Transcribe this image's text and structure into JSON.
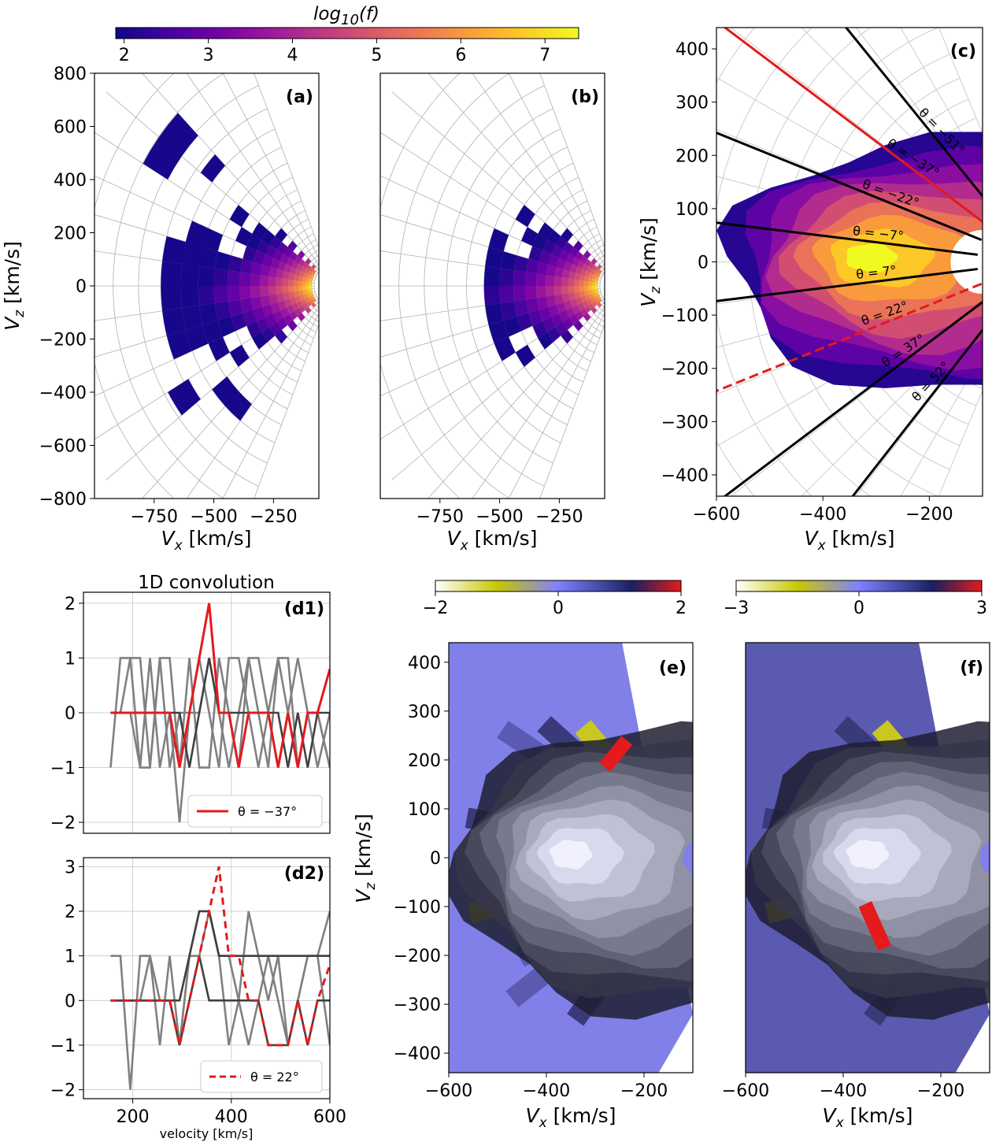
{
  "colors": {
    "plasma": [
      "#0d0887",
      "#46039f",
      "#7201a8",
      "#9c179e",
      "#bd3786",
      "#d8576b",
      "#ed7953",
      "#fb9f3a",
      "#fdca26",
      "#f0f921"
    ],
    "diverging": [
      "#ffffff",
      "#c8c800",
      "#8080ff",
      "#1a2060",
      "#e41a1c"
    ],
    "red": "#e41a1c",
    "black": "#000000",
    "grey": "#808080",
    "dark": "#404040"
  },
  "chart_data": [
    {
      "id": "colorbar-top",
      "type": "colorbar",
      "title": "log10(f)",
      "title_main": "log",
      "title_sub": "10",
      "title_tail": "(f)",
      "range": [
        1.9,
        7.4
      ],
      "ticks": [
        "2",
        "3",
        "4",
        "5",
        "6",
        "7"
      ]
    },
    {
      "id": "a",
      "type": "heatmap",
      "panel_label": "(a)",
      "xlabel": "V",
      "xlabel_sub": "x",
      "xlabel_unit": " [km/s]",
      "ylabel": "V",
      "ylabel_sub": "z",
      "ylabel_unit": " [km/s]",
      "xlim": [
        -1000,
        -60
      ],
      "ylim": [
        -800,
        800
      ],
      "xticks": [
        "−750",
        "−500",
        "−250"
      ],
      "yticks": [
        "800",
        "600",
        "400",
        "200",
        "0",
        "−200",
        "−400",
        "−600",
        "−800"
      ],
      "grid": "polar"
    },
    {
      "id": "b",
      "type": "heatmap",
      "panel_label": "(b)",
      "xlabel": "V",
      "xlabel_sub": "x",
      "xlabel_unit": " [km/s]",
      "xlim": [
        -1000,
        -60
      ],
      "ylim": [
        -800,
        800
      ],
      "xticks": [
        "−750",
        "−500",
        "−250"
      ],
      "grid": "polar"
    },
    {
      "id": "c",
      "type": "contour",
      "panel_label": "(c)",
      "xlabel": "V",
      "xlabel_sub": "x",
      "xlabel_unit": " [km/s]",
      "ylabel": "V",
      "ylabel_sub": "z",
      "ylabel_unit": " [km/s]",
      "xlim": [
        -600,
        -100
      ],
      "ylim": [
        -440,
        440
      ],
      "xticks": [
        "−600",
        "−400",
        "−200"
      ],
      "yticks": [
        "400",
        "300",
        "200",
        "100",
        "0",
        "−100",
        "−200",
        "−300",
        "−400"
      ],
      "angle_lines": [
        {
          "label": "θ = −51°",
          "angle": -51,
          "style": "black"
        },
        {
          "label": "θ = −37°",
          "angle": -37,
          "style": "red"
        },
        {
          "label": "θ = −22°",
          "angle": -22,
          "style": "black"
        },
        {
          "label": "θ = −7°",
          "angle": -7,
          "style": "black"
        },
        {
          "label": "θ = 7°",
          "angle": 7,
          "style": "black"
        },
        {
          "label": "θ = 22°",
          "angle": 22,
          "style": "red-dashed"
        },
        {
          "label": "θ = 37°",
          "angle": 37,
          "style": "black"
        },
        {
          "label": "θ = 52°",
          "angle": 52,
          "style": "black"
        }
      ]
    },
    {
      "id": "d1",
      "type": "line",
      "title": "1D convolution",
      "panel_label": "(d1)",
      "xlim": [
        100,
        600
      ],
      "ylim": [
        -2.2,
        2.2
      ],
      "yticks": [
        "2",
        "1",
        "0",
        "−1",
        "−2"
      ],
      "legend": "θ = −37°",
      "x": [
        155,
        175,
        195,
        215,
        235,
        255,
        275,
        295,
        315,
        335,
        355,
        375,
        395,
        415,
        435,
        455,
        475,
        495,
        515,
        535,
        555,
        575,
        600
      ],
      "series": [
        {
          "name": "θ = −37°",
          "style": "red",
          "values": [
            0,
            0,
            0,
            0,
            0,
            0,
            0,
            -1,
            0,
            1,
            2,
            0,
            0,
            -1,
            0,
            0,
            0,
            -1,
            0,
            -1,
            0,
            0,
            0.8
          ]
        },
        {
          "name": "g1",
          "style": "grey",
          "values": [
            -1,
            1,
            1,
            -1,
            -1,
            1,
            1,
            -1,
            1,
            -1,
            -1,
            1,
            0,
            -1,
            1,
            0,
            -1,
            1,
            0,
            -1,
            0,
            0,
            -1
          ]
        },
        {
          "name": "g2",
          "style": "grey",
          "values": [
            0,
            0,
            1,
            1,
            -1,
            1,
            -1,
            0,
            0,
            1,
            0,
            -1,
            1,
            1,
            0,
            -1,
            0,
            1,
            1,
            -1,
            0,
            -1,
            0
          ]
        },
        {
          "name": "g3",
          "style": "grey",
          "values": [
            0,
            0,
            0,
            -1,
            1,
            -1,
            0,
            -2,
            0,
            0,
            1,
            0,
            -1,
            0,
            1,
            1,
            0,
            -1,
            0,
            1,
            0,
            0,
            -1
          ]
        },
        {
          "name": "k1",
          "style": "dark",
          "values": [
            0,
            0,
            0,
            0,
            0,
            0,
            0,
            0,
            -1,
            0,
            1,
            0,
            0,
            0,
            0,
            0,
            0,
            0,
            -1,
            0,
            -1,
            0,
            0
          ]
        }
      ]
    },
    {
      "id": "d2",
      "type": "line",
      "panel_label": "(d2)",
      "xlabel": "velocity [km/s]",
      "xlim": [
        100,
        600
      ],
      "ylim": [
        -2.2,
        3.2
      ],
      "xticks": [
        "200",
        "400",
        "600"
      ],
      "yticks": [
        "3",
        "2",
        "1",
        "0",
        "−1",
        "−2"
      ],
      "legend": "θ = 22°",
      "x": [
        155,
        175,
        195,
        215,
        235,
        255,
        275,
        295,
        315,
        335,
        355,
        375,
        395,
        415,
        435,
        455,
        475,
        495,
        515,
        535,
        555,
        575,
        600
      ],
      "series": [
        {
          "name": "θ = 22°",
          "style": "red-dashed",
          "values": [
            0,
            0,
            0,
            0,
            0,
            0,
            0,
            -1,
            0,
            1,
            2,
            3,
            1,
            1,
            0,
            0,
            -1,
            -1,
            -1,
            0,
            -1,
            0,
            0.8
          ]
        },
        {
          "name": "g1",
          "style": "grey",
          "values": [
            1,
            1,
            -2,
            1,
            1,
            -1,
            1,
            -1,
            1,
            1,
            2,
            1,
            -1,
            0,
            2,
            1,
            0,
            1,
            -1,
            0,
            1,
            1,
            2
          ]
        },
        {
          "name": "g2",
          "style": "grey",
          "values": [
            0,
            0,
            0,
            0,
            1,
            0,
            0,
            -1,
            1,
            2,
            2,
            1,
            1,
            0,
            -1,
            0,
            1,
            0,
            -1,
            0,
            1,
            1,
            -1
          ]
        },
        {
          "name": "k1",
          "style": "dark",
          "values": [
            0,
            0,
            0,
            0,
            0,
            0,
            0,
            0,
            1,
            2,
            2,
            1,
            1,
            1,
            1,
            1,
            1,
            1,
            1,
            1,
            1,
            1,
            1
          ]
        },
        {
          "name": "k2",
          "style": "dark",
          "values": [
            0,
            0,
            0,
            0,
            0,
            0,
            0,
            -1,
            0,
            1,
            0,
            0,
            0,
            0,
            0,
            0,
            -1,
            -1,
            -1,
            0,
            -1,
            0,
            0
          ]
        }
      ]
    },
    {
      "id": "colorbar-e",
      "type": "colorbar",
      "range": [
        -2,
        2
      ],
      "ticks": [
        "−2",
        "0",
        "2"
      ]
    },
    {
      "id": "colorbar-f",
      "type": "colorbar",
      "range": [
        -3,
        3
      ],
      "ticks": [
        "−3",
        "0",
        "3"
      ]
    },
    {
      "id": "e",
      "type": "heatmap",
      "panel_label": "(e)",
      "xlabel": "V",
      "xlabel_sub": "x",
      "xlabel_unit": " [km/s]",
      "ylabel": "V",
      "ylabel_sub": "z",
      "ylabel_unit": " [km/s]",
      "xlim": [
        -600,
        -100
      ],
      "ylim": [
        -440,
        440
      ],
      "xticks": [
        "−600",
        "−400",
        "−200"
      ],
      "yticks": [
        "400",
        "300",
        "200",
        "100",
        "0",
        "−100",
        "−200",
        "−300",
        "−400"
      ]
    },
    {
      "id": "f",
      "type": "heatmap",
      "panel_label": "(f)",
      "xlabel": "V",
      "xlabel_sub": "x",
      "xlabel_unit": " [km/s]",
      "xlim": [
        -600,
        -100
      ],
      "ylim": [
        -440,
        440
      ],
      "xticks": [
        "−600",
        "−400",
        "−200"
      ]
    }
  ]
}
